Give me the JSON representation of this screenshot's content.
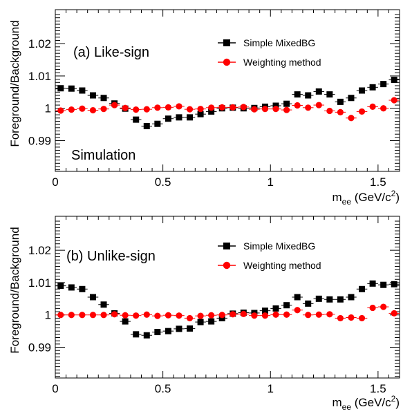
{
  "chart_data": [
    {
      "type": "scatter",
      "panel_label": "(a) Like-sign",
      "extra_label": "Simulation",
      "ylabel": "Foreground/Background",
      "xlabel_base": "m",
      "xlabel_sub": "ee",
      "xlabel_unit": "(GeV/c",
      "xlabel_sup": "2",
      "xlabel_close": ")",
      "xlim": [
        0,
        1.6
      ],
      "ylim": [
        0.9805,
        1.0305
      ],
      "xticks": [
        {
          "v": 0,
          "label": "0"
        },
        {
          "v": 0.5,
          "label": "0.5"
        },
        {
          "v": 1,
          "label": "1"
        },
        {
          "v": 1.5,
          "label": "1.5"
        }
      ],
      "yticks": [
        {
          "v": 0.99,
          "label": "0.99"
        },
        {
          "v": 1.0,
          "label": "1"
        },
        {
          "v": 1.01,
          "label": "1.01"
        },
        {
          "v": 1.02,
          "label": "1.02"
        }
      ],
      "legend_position": "top-right",
      "series": [
        {
          "name": "Simple MixedBG",
          "color": "#000000",
          "marker": "square",
          "x": [
            0.025,
            0.075,
            0.125,
            0.175,
            0.225,
            0.275,
            0.325,
            0.375,
            0.425,
            0.475,
            0.525,
            0.575,
            0.625,
            0.675,
            0.725,
            0.775,
            0.825,
            0.875,
            0.925,
            0.975,
            1.025,
            1.075,
            1.125,
            1.175,
            1.225,
            1.275,
            1.325,
            1.375,
            1.425,
            1.475,
            1.525,
            1.575
          ],
          "y": [
            1.0062,
            1.0061,
            1.0055,
            1.004,
            1.0032,
            1.0015,
            0.9999,
            0.9965,
            0.9945,
            0.9952,
            0.9968,
            0.9972,
            0.9972,
            0.9982,
            0.999,
            1.0,
            1.0002,
            1.0,
            1.0001,
            1.0005,
            1.0008,
            1.0014,
            1.0043,
            1.004,
            1.0052,
            1.0043,
            1.002,
            1.0032,
            1.0055,
            1.0065,
            1.0075,
            1.0088
          ]
        },
        {
          "name": "Weighting method",
          "color": "#ff0000",
          "marker": "circle",
          "x": [
            0.025,
            0.075,
            0.125,
            0.175,
            0.225,
            0.275,
            0.325,
            0.375,
            0.425,
            0.475,
            0.525,
            0.575,
            0.625,
            0.675,
            0.725,
            0.775,
            0.825,
            0.875,
            0.925,
            0.975,
            1.025,
            1.075,
            1.125,
            1.175,
            1.225,
            1.275,
            1.325,
            1.375,
            1.425,
            1.475,
            1.525,
            1.575
          ],
          "y": [
            0.9993,
            0.9996,
            0.9999,
            0.9994,
            0.9998,
            1.001,
            1.0001,
            0.9996,
            0.9997,
            1.0002,
            1.0003,
            1.0006,
            0.9997,
            0.9998,
            1.0002,
            1.0003,
            1.0003,
            1.0004,
            0.9997,
            0.9998,
            0.9998,
            0.9995,
            1.0009,
            1.0002,
            1.001,
            0.9992,
            0.9988,
            0.997,
            0.999,
            1.0005,
            1.0,
            1.0025
          ]
        }
      ]
    },
    {
      "type": "scatter",
      "panel_label": "(b) Unlike-sign",
      "extra_label": "",
      "ylabel": "Foreground/Background",
      "xlabel_base": "m",
      "xlabel_sub": "ee",
      "xlabel_unit": "(GeV/c",
      "xlabel_sup": "2",
      "xlabel_close": ")",
      "xlim": [
        0,
        1.6
      ],
      "ylim": [
        0.9805,
        1.0305
      ],
      "xticks": [
        {
          "v": 0,
          "label": "0"
        },
        {
          "v": 0.5,
          "label": "0.5"
        },
        {
          "v": 1,
          "label": "1"
        },
        {
          "v": 1.5,
          "label": "1.5"
        }
      ],
      "yticks": [
        {
          "v": 0.99,
          "label": "0.99"
        },
        {
          "v": 1.0,
          "label": "1"
        },
        {
          "v": 1.01,
          "label": "1.01"
        },
        {
          "v": 1.02,
          "label": "1.02"
        }
      ],
      "legend_position": "top-right",
      "series": [
        {
          "name": "Simple MixedBG",
          "color": "#000000",
          "marker": "square",
          "x": [
            0.025,
            0.075,
            0.125,
            0.175,
            0.225,
            0.275,
            0.325,
            0.375,
            0.425,
            0.475,
            0.525,
            0.575,
            0.625,
            0.675,
            0.725,
            0.775,
            0.825,
            0.875,
            0.925,
            0.975,
            1.025,
            1.075,
            1.125,
            1.175,
            1.225,
            1.275,
            1.325,
            1.375,
            1.425,
            1.475,
            1.525,
            1.575
          ],
          "y": [
            1.009,
            1.0085,
            1.008,
            1.0055,
            1.0032,
            1.0005,
            0.998,
            0.994,
            0.9937,
            0.9947,
            0.995,
            0.9957,
            0.9958,
            0.9978,
            0.998,
            0.999,
            1.0004,
            1.0007,
            1.0006,
            1.0013,
            1.002,
            1.003,
            1.0055,
            1.0035,
            1.005,
            1.0048,
            1.0048,
            1.0055,
            1.008,
            1.0097,
            1.0093,
            1.0095
          ]
        },
        {
          "name": "Weighting method",
          "color": "#ff0000",
          "marker": "circle",
          "x": [
            0.025,
            0.075,
            0.125,
            0.175,
            0.225,
            0.275,
            0.325,
            0.375,
            0.425,
            0.475,
            0.525,
            0.575,
            0.625,
            0.675,
            0.725,
            0.775,
            0.825,
            0.875,
            0.925,
            0.975,
            1.025,
            1.075,
            1.125,
            1.175,
            1.225,
            1.275,
            1.325,
            1.375,
            1.425,
            1.475,
            1.525,
            1.575
          ],
          "y": [
            1.0,
            1.0,
            1.0,
            1.0,
            1.0,
            1.0002,
            0.9999,
            0.9998,
            1.0001,
            0.9997,
            0.9999,
            0.9998,
            0.999,
            0.9997,
            0.9999,
            1.0,
            1.0002,
            1.0003,
            0.9998,
            0.9998,
            1.0001,
            1.0001,
            1.0015,
            1.0,
            1.0001,
            1.0002,
            0.999,
            0.9992,
            0.999,
            1.0022,
            1.0025,
            1.0005
          ]
        }
      ]
    }
  ]
}
